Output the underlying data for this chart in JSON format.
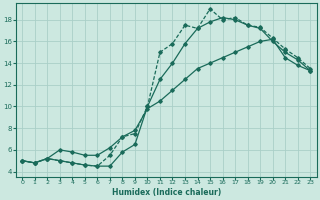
{
  "xlabel": "Humidex (Indice chaleur)",
  "background_color": "#cce8e0",
  "grid_color": "#aacfc8",
  "line_color": "#1a6b5a",
  "xlim": [
    -0.5,
    23.5
  ],
  "ylim": [
    3.5,
    19.5
  ],
  "xticks": [
    0,
    1,
    2,
    3,
    4,
    5,
    6,
    7,
    8,
    9,
    10,
    11,
    12,
    13,
    14,
    15,
    16,
    17,
    18,
    19,
    20,
    21,
    22,
    23
  ],
  "yticks": [
    4,
    6,
    8,
    10,
    12,
    14,
    16,
    18
  ],
  "line1_x": [
    0,
    1,
    2,
    3,
    4,
    5,
    6,
    7,
    8,
    9,
    10,
    11,
    12,
    13,
    14,
    15,
    16,
    17,
    18,
    19,
    20,
    21,
    22,
    23
  ],
  "line1_y": [
    5.0,
    4.8,
    5.2,
    5.0,
    4.8,
    4.6,
    4.5,
    5.5,
    7.2,
    7.5,
    10.0,
    15.0,
    15.8,
    17.5,
    17.2,
    19.0,
    18.0,
    18.2,
    17.5,
    17.3,
    16.3,
    15.3,
    14.5,
    13.5
  ],
  "line2_x": [
    0,
    1,
    2,
    3,
    4,
    5,
    6,
    7,
    8,
    9,
    10,
    11,
    12,
    13,
    14,
    15,
    16,
    17,
    18,
    19,
    20,
    21,
    22,
    23
  ],
  "line2_y": [
    5.0,
    4.8,
    5.2,
    6.0,
    5.8,
    5.5,
    5.5,
    6.2,
    7.2,
    7.8,
    9.8,
    10.5,
    11.5,
    12.5,
    13.5,
    14.0,
    14.5,
    15.0,
    15.5,
    16.0,
    16.2,
    14.5,
    13.8,
    13.3
  ],
  "line3_x": [
    0,
    1,
    2,
    3,
    4,
    5,
    6,
    7,
    8,
    9,
    10,
    11,
    12,
    13,
    14,
    15,
    16,
    17,
    18,
    19,
    20,
    21,
    22,
    23
  ],
  "line3_y": [
    5.0,
    4.8,
    5.2,
    5.0,
    4.8,
    4.6,
    4.5,
    4.5,
    5.8,
    6.5,
    10.0,
    12.5,
    14.0,
    15.8,
    17.2,
    17.8,
    18.2,
    18.0,
    17.5,
    17.2,
    16.0,
    15.0,
    14.3,
    13.3
  ]
}
